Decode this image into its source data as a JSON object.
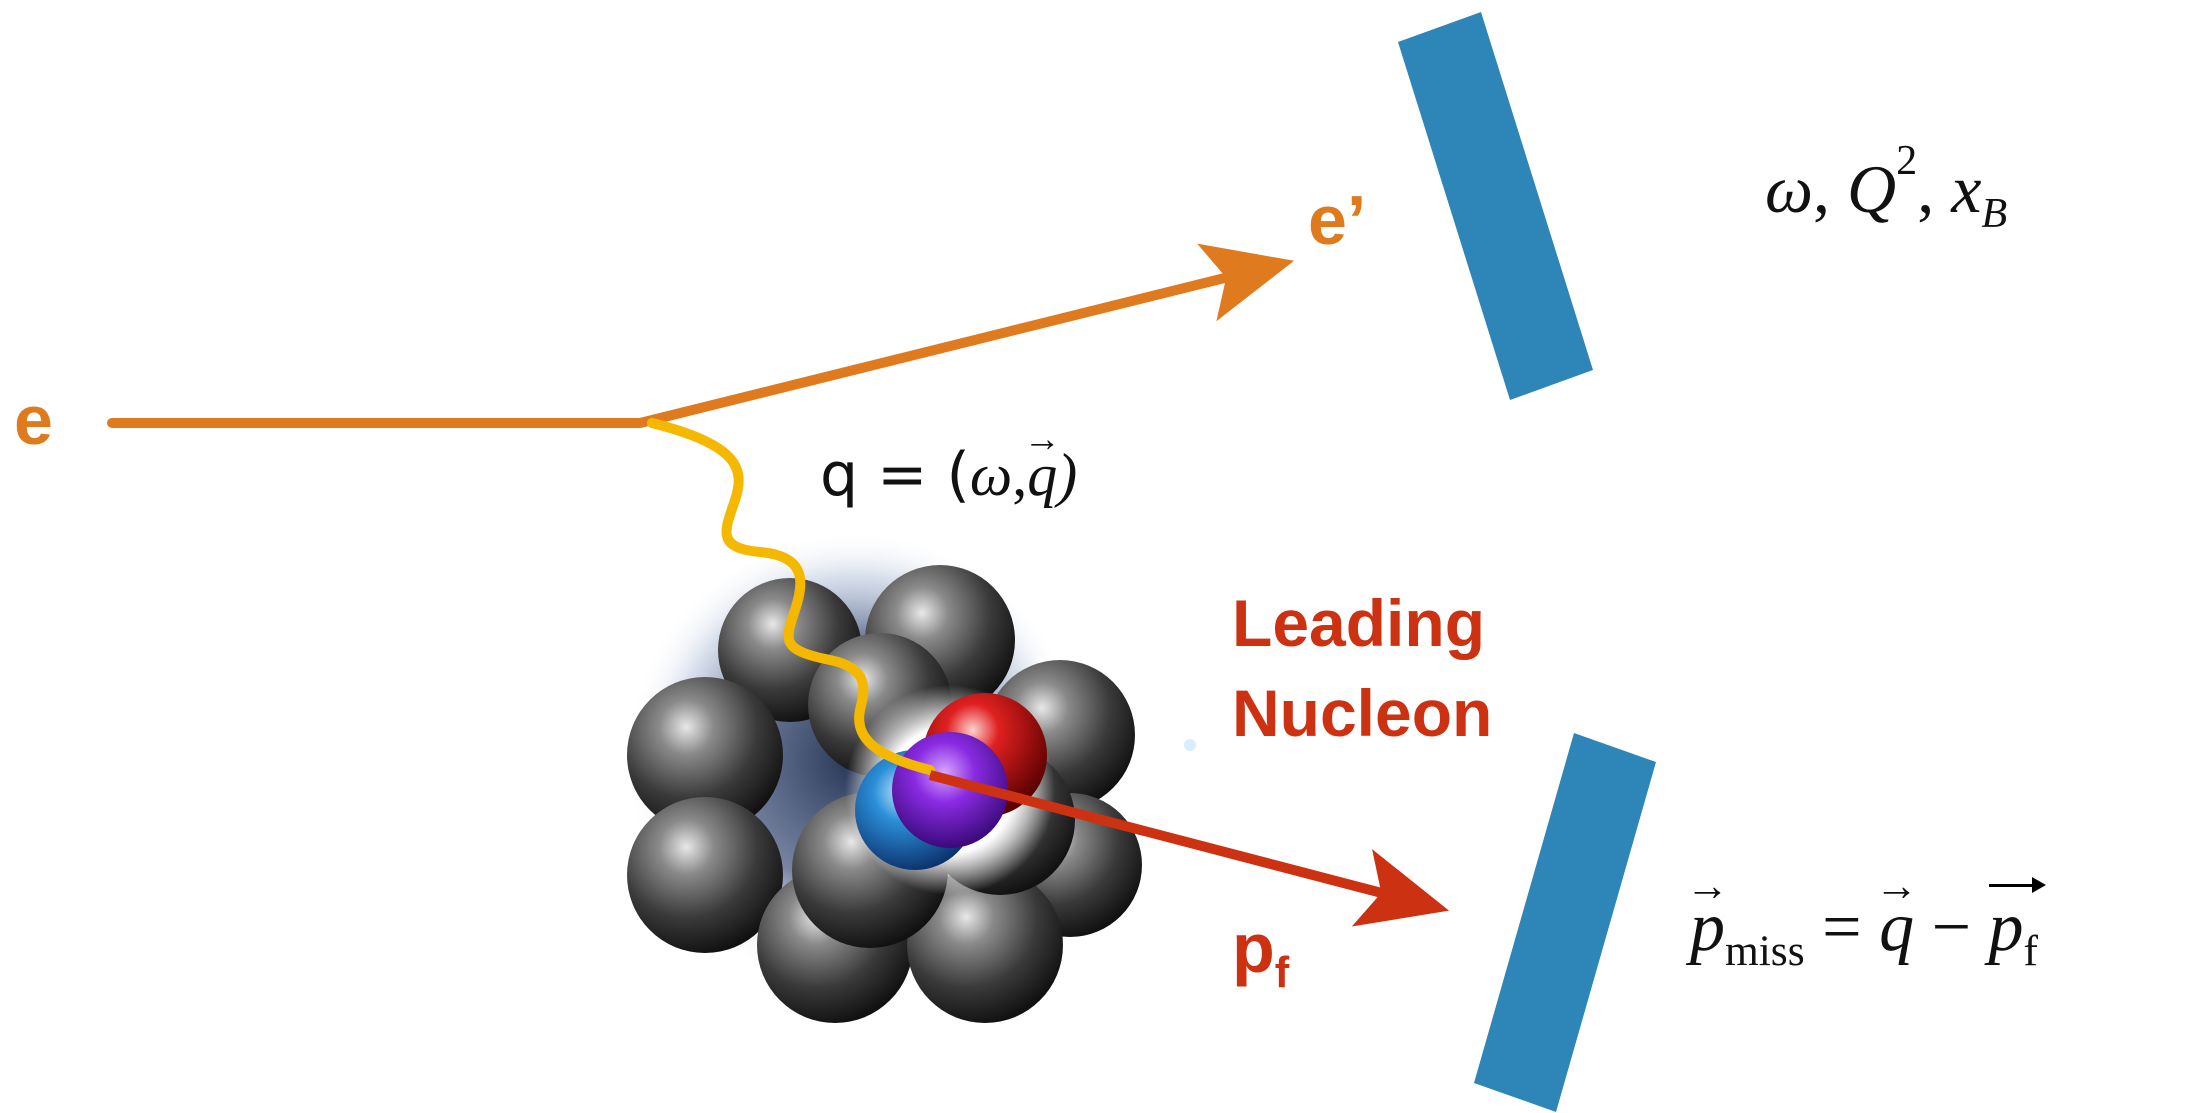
{
  "labels": {
    "electron_in": "e",
    "electron_out": "e’",
    "photon": {
      "prefix": "q = (",
      "omega": "ω",
      "comma": ",",
      "q": "q",
      "suffix": ")"
    },
    "leading_nucleon_line1": "Leading",
    "leading_nucleon_line2": "Nucleon",
    "pf_main": "p",
    "pf_sub": "f",
    "kinematics": {
      "omega": "ω",
      "sep1": ", ",
      "Q": "Q",
      "Q_sup": "2",
      "sep2": ", ",
      "x": "x",
      "x_sub": "B"
    },
    "pmiss": {
      "p": "p",
      "p_sub": "miss",
      "eq": " = ",
      "q": "q",
      "minus": " − ",
      "pf": "p",
      "pf_sub": "f"
    }
  },
  "colors": {
    "electron": "#e07a1f",
    "photon": "#f5b800",
    "nucleon_arrow": "#cc3112",
    "text_red": "#cc3112",
    "detector": "#2e86b8",
    "neutron": "#3a3a3a",
    "leading_nucleon": "#7a1fd6"
  },
  "icons": {
    "nucleus": "nucleus-cluster-icon",
    "detector_top": "detector-slab-icon",
    "detector_bottom": "detector-slab-icon"
  }
}
